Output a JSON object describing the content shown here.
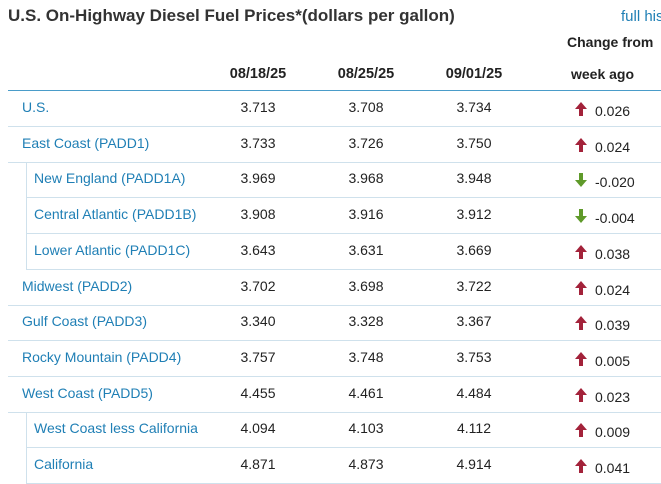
{
  "title": "U.S. On-Highway Diesel Fuel Prices*(dollars per gallon)",
  "history_link": "full his",
  "headers": {
    "change_line1": "Change from",
    "change_line2": "week ago"
  },
  "dates": [
    "08/18/25",
    "08/25/25",
    "09/01/25"
  ],
  "colors": {
    "up": "#a3223a",
    "down": "#5f9a2a",
    "link": "#1f7fb5"
  },
  "rows": [
    {
      "name": "U.S.",
      "values": [
        "3.713",
        "3.708",
        "3.734"
      ],
      "change": "0.026",
      "direction": "up",
      "sub": false
    },
    {
      "name": "East Coast (PADD1)",
      "values": [
        "3.733",
        "3.726",
        "3.750"
      ],
      "change": "0.024",
      "direction": "up",
      "sub": false
    },
    {
      "name": "New England (PADD1A)",
      "values": [
        "3.969",
        "3.968",
        "3.948"
      ],
      "change": "-0.020",
      "direction": "down",
      "sub": true
    },
    {
      "name": "Central Atlantic (PADD1B)",
      "values": [
        "3.908",
        "3.916",
        "3.912"
      ],
      "change": "-0.004",
      "direction": "down",
      "sub": true
    },
    {
      "name": "Lower Atlantic (PADD1C)",
      "values": [
        "3.643",
        "3.631",
        "3.669"
      ],
      "change": "0.038",
      "direction": "up",
      "sub": true
    },
    {
      "name": "Midwest (PADD2)",
      "values": [
        "3.702",
        "3.698",
        "3.722"
      ],
      "change": "0.024",
      "direction": "up",
      "sub": false
    },
    {
      "name": "Gulf Coast (PADD3)",
      "values": [
        "3.340",
        "3.328",
        "3.367"
      ],
      "change": "0.039",
      "direction": "up",
      "sub": false
    },
    {
      "name": "Rocky Mountain (PADD4)",
      "values": [
        "3.757",
        "3.748",
        "3.753"
      ],
      "change": "0.005",
      "direction": "up",
      "sub": false
    },
    {
      "name": "West Coast (PADD5)",
      "values": [
        "4.455",
        "4.461",
        "4.484"
      ],
      "change": "0.023",
      "direction": "up",
      "sub": false
    },
    {
      "name": "West Coast less California",
      "values": [
        "4.094",
        "4.103",
        "4.112"
      ],
      "change": "0.009",
      "direction": "up",
      "sub": true
    },
    {
      "name": "California",
      "values": [
        "4.871",
        "4.873",
        "4.914"
      ],
      "change": "0.041",
      "direction": "up",
      "sub": true
    }
  ]
}
